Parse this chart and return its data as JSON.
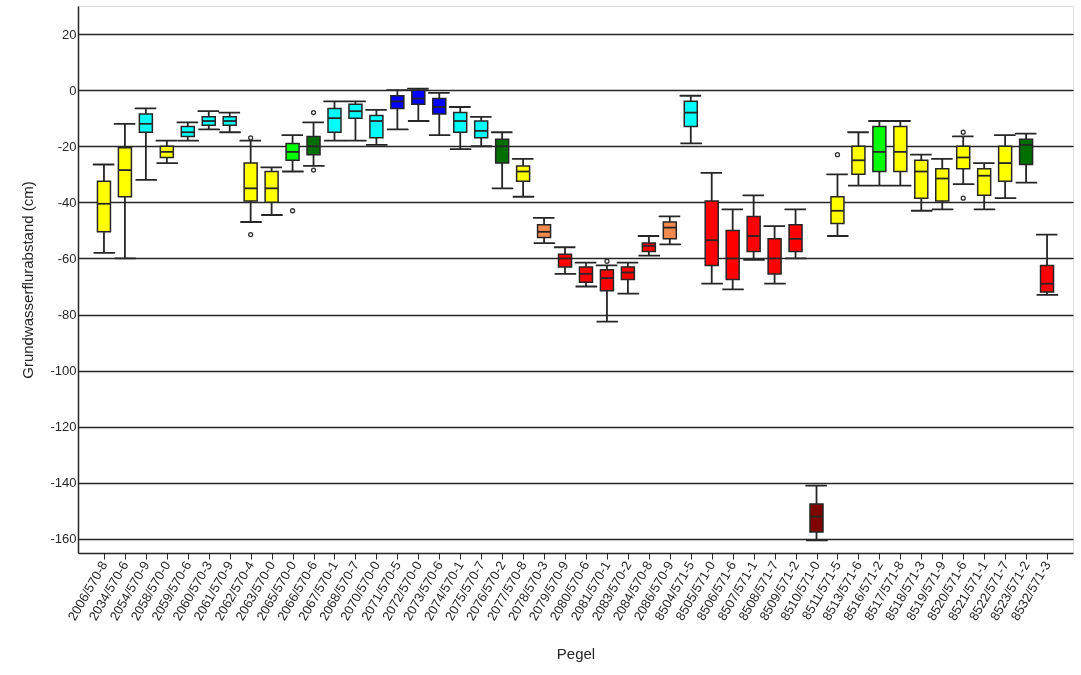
{
  "chart_data": {
    "type": "box",
    "xlabel": "Pegel",
    "ylabel": "Grundwasserflurabstand (cm)",
    "categories": [
      "2006/570-8",
      "2034/570-6",
      "2054/570-9",
      "2058/570-0",
      "2059/570-6",
      "2060/570-3",
      "2061/570-9",
      "2062/570-4",
      "2063/570-0",
      "2065/570-0",
      "2066/570-6",
      "2067/570-1",
      "2068/570-7",
      "2070/570-0",
      "2071/570-5",
      "2072/570-0",
      "2073/570-6",
      "2074/570-1",
      "2075/570-7",
      "2076/570-2",
      "2077/570-8",
      "2078/570-3",
      "2079/570-9",
      "2080/570-6",
      "2081/570-1",
      "2083/570-2",
      "2084/570-8",
      "2086/570-9",
      "8504/571-5",
      "8505/571-0",
      "8506/571-6",
      "8507/571-1",
      "8508/571-7",
      "8509/571-2",
      "8510/571-0",
      "8511/571-5",
      "8513/571-6",
      "8516/571-2",
      "8517/571-8",
      "8518/571-3",
      "8519/571-9",
      "8520/571-6",
      "8521/571-1",
      "8522/571-7",
      "8523/571-2",
      "8532/571-3"
    ],
    "boxes": [
      {
        "low": -58,
        "q1": -50.5,
        "median": -40.5,
        "q3": -32.5,
        "high": -26.5
      },
      {
        "low": -60,
        "q1": -38,
        "median": -28.5,
        "q3": -20.5,
        "high": -12
      },
      {
        "low": -32,
        "q1": -15,
        "median": -12,
        "q3": -8.5,
        "high": -6.5
      },
      {
        "low": -26,
        "q1": -24,
        "median": -22,
        "q3": -20,
        "high": -18
      },
      {
        "low": -18,
        "q1": -16.5,
        "median": -15,
        "q3": -13,
        "high": -11.5
      },
      {
        "low": -14,
        "q1": -12.5,
        "median": -11,
        "q3": -9.5,
        "high": -7.5
      },
      {
        "low": -15,
        "q1": -12.5,
        "median": -11,
        "q3": -9.5,
        "high": -8
      },
      {
        "low": -47,
        "q1": -39.5,
        "median": -35,
        "q3": -26,
        "high": -18,
        "outliers": [
          -51.5,
          -17
        ]
      },
      {
        "low": -44.5,
        "q1": -40,
        "median": -35,
        "q3": -29,
        "high": -27.5
      },
      {
        "low": -29,
        "q1": -25,
        "median": -22,
        "q3": -19,
        "high": -16,
        "outliers": [
          -43
        ]
      },
      {
        "low": -27,
        "q1": -23,
        "median": -20,
        "q3": -16.5,
        "high": -11.5,
        "outliers": [
          -8,
          -28.5
        ]
      },
      {
        "low": -18,
        "q1": -15,
        "median": -10,
        "q3": -6.5,
        "high": -4
      },
      {
        "low": -18,
        "q1": -10,
        "median": -7.5,
        "q3": -5,
        "high": -4
      },
      {
        "low": -19.5,
        "q1": -17,
        "median": -11,
        "q3": -9,
        "high": -7
      },
      {
        "low": -14,
        "q1": -6.5,
        "median": -4,
        "q3": -2,
        "high": 0
      },
      {
        "low": -11,
        "q1": -5,
        "median": -3,
        "q3": 0,
        "high": 0.5
      },
      {
        "low": -16,
        "q1": -8.5,
        "median": -6,
        "q3": -3,
        "high": -1
      },
      {
        "low": -21,
        "q1": -15,
        "median": -11,
        "q3": -8,
        "high": -6
      },
      {
        "low": -20,
        "q1": -17,
        "median": -14.5,
        "q3": -11,
        "high": -9.5
      },
      {
        "low": -35,
        "q1": -26,
        "median": -20,
        "q3": -17.5,
        "high": -15
      },
      {
        "low": -38,
        "q1": -32.5,
        "median": -29,
        "q3": -27,
        "high": -24.5
      },
      {
        "low": -54.5,
        "q1": -52.5,
        "median": -50.5,
        "q3": -48,
        "high": -45.5
      },
      {
        "low": -65.5,
        "q1": -63,
        "median": -60,
        "q3": -58.5,
        "high": -56
      },
      {
        "low": -70,
        "q1": -68.5,
        "median": -65.5,
        "q3": -63,
        "high": -61.5
      },
      {
        "low": -82.5,
        "q1": -71.5,
        "median": -67,
        "q3": -64,
        "high": -62.5,
        "outliers": [
          -61
        ]
      },
      {
        "low": -72.5,
        "q1": -67.5,
        "median": -65,
        "q3": -63,
        "high": -61.5
      },
      {
        "low": -59,
        "q1": -57.5,
        "median": -55.5,
        "q3": -54.5,
        "high": -52
      },
      {
        "low": -55,
        "q1": -53,
        "median": -49,
        "q3": -47,
        "high": -45
      },
      {
        "low": -19,
        "q1": -13,
        "median": -8,
        "q3": -4,
        "high": -2
      },
      {
        "low": -69,
        "q1": -62.5,
        "median": -53.5,
        "q3": -39.5,
        "high": -29.5
      },
      {
        "low": -71,
        "q1": -67.5,
        "median": -60,
        "q3": -50,
        "high": -42.5
      },
      {
        "low": -60.5,
        "q1": -57.5,
        "median": -52,
        "q3": -45,
        "high": -37.5
      },
      {
        "low": -69,
        "q1": -65.5,
        "median": -60,
        "q3": -53,
        "high": -48.5
      },
      {
        "low": -60,
        "q1": -57.5,
        "median": -53,
        "q3": -48,
        "high": -42.5
      },
      {
        "low": -160.5,
        "q1": -157.5,
        "median": -152,
        "q3": -147.5,
        "high": -141
      },
      {
        "low": -52,
        "q1": -47.5,
        "median": -43,
        "q3": -38,
        "high": -30,
        "outliers": [
          -23
        ]
      },
      {
        "low": -34,
        "q1": -30,
        "median": -25,
        "q3": -20,
        "high": -15
      },
      {
        "low": -34,
        "q1": -29,
        "median": -22,
        "q3": -13,
        "high": -11
      },
      {
        "low": -34,
        "q1": -29,
        "median": -22,
        "q3": -13,
        "high": -11
      },
      {
        "low": -43,
        "q1": -38.5,
        "median": -29,
        "q3": -25,
        "high": -23
      },
      {
        "low": -42.5,
        "q1": -39.5,
        "median": -31.5,
        "q3": -28,
        "high": -24.5
      },
      {
        "low": -33.5,
        "q1": -28,
        "median": -24,
        "q3": -20,
        "high": -16.5,
        "outliers": [
          -15,
          -38.5
        ]
      },
      {
        "low": -42.5,
        "q1": -37.5,
        "median": -30.5,
        "q3": -28,
        "high": -26
      },
      {
        "low": -38.5,
        "q1": -32.5,
        "median": -26,
        "q3": -20,
        "high": -16
      },
      {
        "low": -33,
        "q1": -26.5,
        "median": -19.5,
        "q3": -17.5,
        "high": -15.5
      },
      {
        "low": -73,
        "q1": -72,
        "median": -69,
        "q3": -62.5,
        "high": -51.5
      }
    ],
    "colors": [
      "#ffff00",
      "#ffff00",
      "#00ffff",
      "#ffff00",
      "#00ffff",
      "#00ffff",
      "#00ffff",
      "#ffff00",
      "#ffff00",
      "#00ff00",
      "#006f00",
      "#00ffff",
      "#00ffff",
      "#00ffff",
      "#0000ff",
      "#0000ff",
      "#0000ff",
      "#00ffff",
      "#00ffff",
      "#006f00",
      "#ffff00",
      "#f28a4e",
      "#ff0000",
      "#ff0000",
      "#ff0000",
      "#ff0000",
      "#ff0000",
      "#f28a4e",
      "#00ffff",
      "#ff0000",
      "#ff0000",
      "#ff0000",
      "#ff0000",
      "#ff0000",
      "#800000",
      "#ffff00",
      "#ffff00",
      "#00ff00",
      "#ffff00",
      "#ffff00",
      "#ffff00",
      "#ffff00",
      "#ffff00",
      "#ffff00",
      "#006f00",
      "#ff0000"
    ],
    "ylim": [
      -165,
      30
    ],
    "yticks": [
      20,
      0,
      -20,
      -40,
      -60,
      -80,
      -100,
      -120,
      -140,
      -160
    ],
    "grid": "y"
  }
}
